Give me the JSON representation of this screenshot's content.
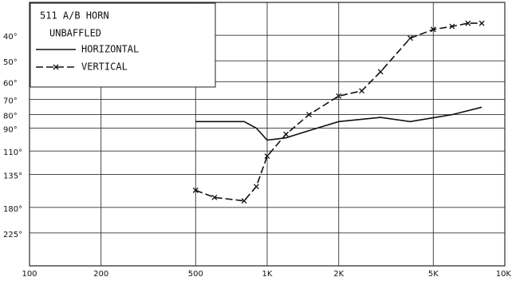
{
  "chart_data": {
    "type": "line",
    "title": "511 A/B HORN",
    "subtitle": "UNBAFFLED",
    "xscale": "log",
    "yscale": "log",
    "xlim": [
      100,
      10000
    ],
    "xticks": [
      100,
      200,
      500,
      {
        "value": 1000,
        "label": "1K"
      },
      {
        "value": 2000,
        "label": "2K"
      },
      {
        "value": 5000,
        "label": "5K"
      },
      {
        "value": 10000,
        "label": "10K"
      }
    ],
    "ylim": [
      300,
      30
    ],
    "yticks": [
      {
        "value": 40,
        "label": "40°"
      },
      {
        "value": 50,
        "label": "50°"
      },
      {
        "value": 60,
        "label": "60°"
      },
      {
        "value": 70,
        "label": "70°"
      },
      {
        "value": 80,
        "label": "80°"
      },
      {
        "value": 90,
        "label": "90°"
      },
      {
        "value": 110,
        "label": "110°"
      },
      {
        "value": 135,
        "label": "135°"
      },
      {
        "value": 180,
        "label": "180°"
      },
      {
        "value": 225,
        "label": "225°"
      }
    ],
    "grid": true,
    "legend": "upper left",
    "series": [
      {
        "name": "HORIZONTAL",
        "color": "#111111",
        "marker": "none",
        "x": [
          500,
          800,
          900,
          1000,
          1200,
          1500,
          2000,
          3000,
          4000,
          6000,
          8000
        ],
        "values": [
          85,
          85,
          90,
          100,
          98,
          92,
          85,
          82,
          85,
          80,
          75
        ]
      },
      {
        "name": "VERTICAL",
        "color": "#111111",
        "marker": "x",
        "x": [
          500,
          600,
          800,
          900,
          1000,
          1200,
          1500,
          2000,
          2500,
          3000,
          4000,
          5000,
          6000,
          7000,
          8000
        ],
        "values": [
          155,
          165,
          170,
          150,
          115,
          95,
          80,
          68,
          65,
          55,
          41,
          38,
          37,
          36,
          36
        ]
      }
    ]
  }
}
